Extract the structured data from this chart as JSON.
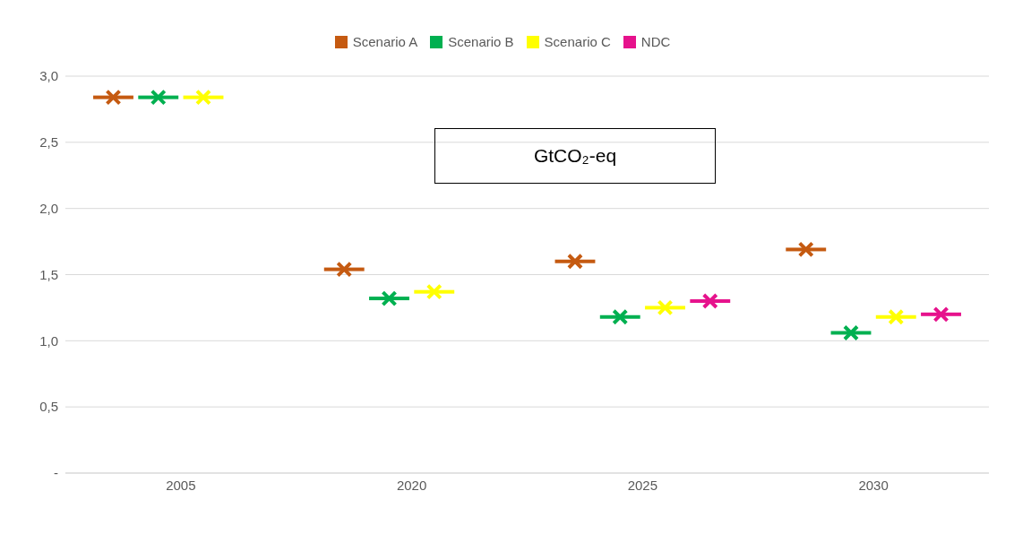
{
  "chart_data": {
    "type": "scatter",
    "categories": [
      "2005",
      "2020",
      "2025",
      "2030"
    ],
    "series": [
      {
        "name": "Scenario A",
        "color": "#c55a11",
        "values": [
          2.84,
          1.54,
          1.6,
          1.69
        ]
      },
      {
        "name": "Scenario B",
        "color": "#00b050",
        "values": [
          2.84,
          1.32,
          1.18,
          1.06
        ]
      },
      {
        "name": "Scenario C",
        "color": "#ffff00",
        "values": [
          2.84,
          1.37,
          1.25,
          1.18
        ]
      },
      {
        "name": "NDC",
        "color": "#e6128c",
        "values": [
          null,
          null,
          1.3,
          1.2
        ]
      }
    ],
    "ylim": [
      0,
      3
    ],
    "yticks": [
      {
        "value": 0,
        "label": "-"
      },
      {
        "value": 0.5,
        "label": "0,5"
      },
      {
        "value": 1,
        "label": "1,0"
      },
      {
        "value": 1.5,
        "label": "1,5"
      },
      {
        "value": 2,
        "label": "2,0"
      },
      {
        "value": 2.5,
        "label": "2,5"
      },
      {
        "value": 3,
        "label": "3,0"
      }
    ],
    "grid": "y",
    "legend": "top",
    "marker": "cross",
    "annotations": [
      "GtCO₂-eq"
    ]
  }
}
